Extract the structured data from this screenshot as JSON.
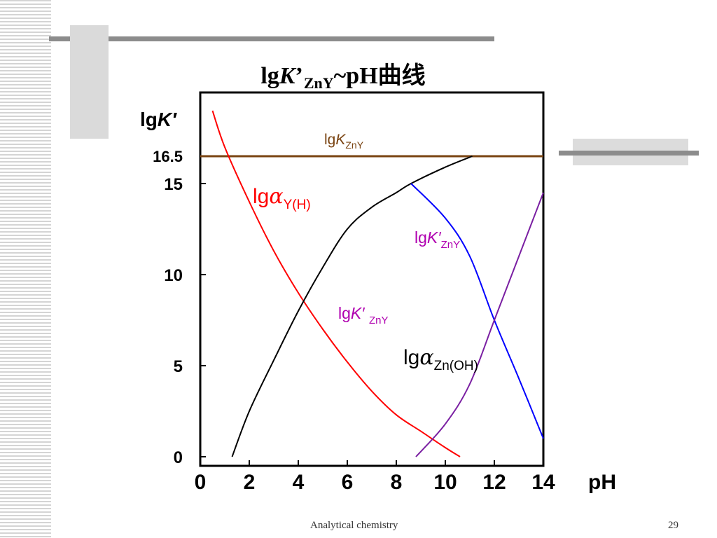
{
  "slide": {
    "title": {
      "prefix": "lg",
      "symbol": "K",
      "prime": "’",
      "subscript": "ZnY",
      "suffix": "~pH曲线"
    },
    "footer_text": "Analytical chemistry",
    "page_number": "29"
  },
  "chart_data": {
    "type": "line",
    "x": {
      "label": "pH",
      "range": [
        0,
        14
      ],
      "ticks": [
        0,
        2,
        4,
        6,
        8,
        10,
        12,
        14
      ]
    },
    "y": {
      "label": "lgK′",
      "range": [
        -0.5,
        20
      ],
      "ticks": [
        0,
        5,
        10,
        15
      ],
      "extra_tick": 16.5
    },
    "grid": false,
    "series": [
      {
        "name": "lgK_ZnY",
        "color": "#7a4412",
        "points": [
          [
            0,
            16.5
          ],
          [
            14,
            16.5
          ]
        ]
      },
      {
        "name": "lgα_Y(H)",
        "color": "#ff0000",
        "points": [
          [
            0.5,
            19.0
          ],
          [
            1,
            17.0
          ],
          [
            2,
            14.0
          ],
          [
            3,
            11.3
          ],
          [
            4,
            9.0
          ],
          [
            5,
            7.0
          ],
          [
            6,
            5.2
          ],
          [
            7,
            3.6
          ],
          [
            8,
            2.3
          ],
          [
            9,
            1.4
          ],
          [
            10,
            0.5
          ],
          [
            10.6,
            0.0
          ]
        ]
      },
      {
        "name": "lgK′_ZnY",
        "color": "#000000",
        "points": [
          [
            1.3,
            0.0
          ],
          [
            2,
            2.5
          ],
          [
            3,
            5.3
          ],
          [
            4,
            8.0
          ],
          [
            5,
            10.4
          ],
          [
            6,
            12.5
          ],
          [
            7,
            13.7
          ],
          [
            8,
            14.5
          ],
          [
            8.6,
            15.0
          ],
          [
            10,
            15.9
          ],
          [
            11.1,
            16.5
          ]
        ]
      },
      {
        "name": "lgK′_ZnY (high pH)",
        "color": "#0000ff",
        "points": [
          [
            8.6,
            15.0
          ],
          [
            10,
            13.1
          ],
          [
            11,
            11.0
          ],
          [
            12,
            7.5
          ],
          [
            13,
            4.3
          ],
          [
            14,
            1.0
          ]
        ]
      },
      {
        "name": "lgα_Zn(OH)",
        "color": "#7a1fa2",
        "points": [
          [
            8.8,
            0.0
          ],
          [
            10,
            1.8
          ],
          [
            11,
            4.0
          ],
          [
            12,
            7.5
          ],
          [
            13,
            11.0
          ],
          [
            14,
            14.5
          ]
        ]
      }
    ],
    "annotations": [
      {
        "id": "lgKZnY",
        "text_main": "lg",
        "text_symbol": "K",
        "text_sub": "ZnY",
        "color": "#7a4412"
      },
      {
        "id": "alphaYH",
        "text_main": "lg",
        "text_symbol": "α",
        "text_sub": "Y(H)",
        "color": "#ff0000"
      },
      {
        "id": "kprime_right",
        "text_main": "lg",
        "text_symbol": "K′",
        "text_sub": "ZnY",
        "color": "#b000b0"
      },
      {
        "id": "kprime_mid",
        "text_main": "lg",
        "text_symbol": "K′ ",
        "text_sub": "ZnY",
        "color": "#b000b0"
      },
      {
        "id": "alphaZnOH",
        "text_main": "lg",
        "text_symbol": "α",
        "text_sub": "Zn(OH)",
        "color": "#000000"
      }
    ]
  }
}
